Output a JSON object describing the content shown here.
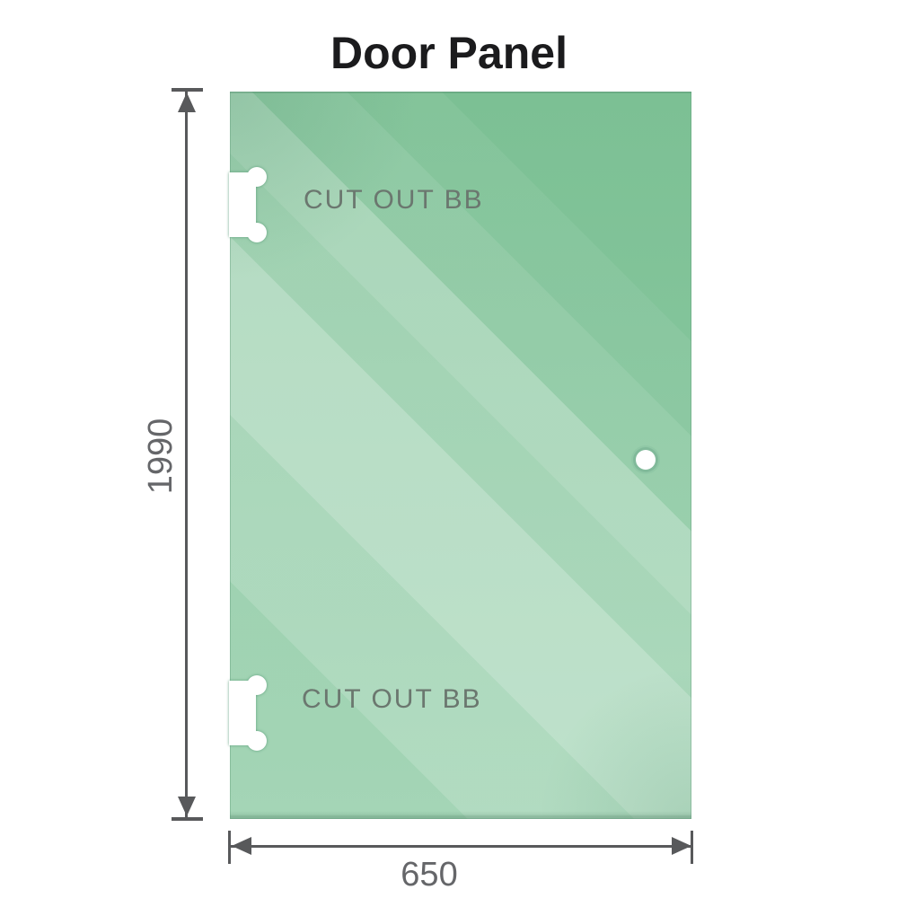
{
  "title": "Door Panel",
  "panel": {
    "cutout_top_label": "CUT OUT BB",
    "cutout_bottom_label": "CUT OUT BB"
  },
  "dimensions": {
    "height_label": "1990",
    "width_label": "650"
  },
  "colors": {
    "glass_green": "#7cc094",
    "glass_highlight": "#c8e9d4",
    "dimension_line": "#58595b",
    "dimension_text": "#656669",
    "cutout_text": "#6b776f",
    "title_text": "#1b1b1d",
    "background": "#ffffff"
  }
}
